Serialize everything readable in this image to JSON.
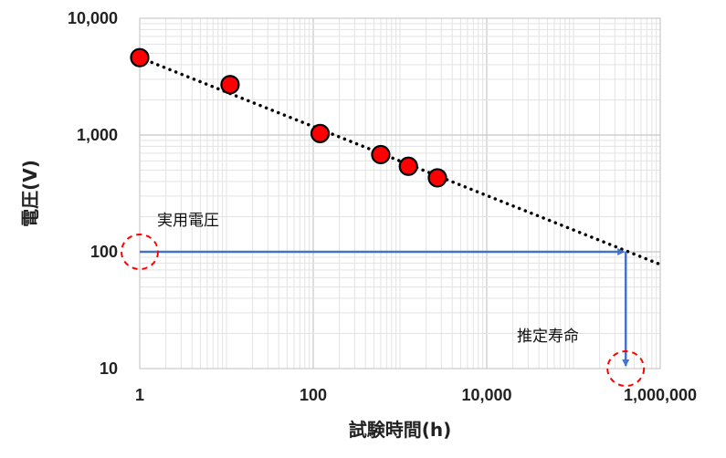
{
  "chart_data": {
    "type": "scatter",
    "xlabel": "試験時間(h)",
    "ylabel": "電圧(V)",
    "x_scale": "log",
    "y_scale": "log",
    "xlim": [
      1,
      1000000
    ],
    "ylim": [
      10,
      10000
    ],
    "grid": true,
    "x_ticks": [
      {
        "value": 1,
        "label": "1"
      },
      {
        "value": 100,
        "label": "100"
      },
      {
        "value": 10000,
        "label": "10,000"
      },
      {
        "value": 1000000,
        "label": "1,000,000"
      }
    ],
    "y_ticks": [
      {
        "value": 10,
        "label": "10"
      },
      {
        "value": 100,
        "label": "100"
      },
      {
        "value": 1000,
        "label": "1,000"
      },
      {
        "value": 10000,
        "label": "10,000"
      }
    ],
    "series": [
      {
        "points": [
          {
            "x": 1,
            "y": 4600
          },
          {
            "x": 11,
            "y": 2700
          },
          {
            "x": 120,
            "y": 1030
          },
          {
            "x": 600,
            "y": 680
          },
          {
            "x": 1250,
            "y": 540
          },
          {
            "x": 2700,
            "y": 430
          }
        ],
        "color": "#ff0000",
        "edge_color": "#000000"
      }
    ],
    "trendline": {
      "x_start": 1,
      "y_start": 4600,
      "x_end": 1000000,
      "y_end": 78,
      "style": "dotted",
      "color": "#000000"
    },
    "annotations": {
      "practical_voltage": {
        "label": "実用電圧",
        "y": 100,
        "x_start": 1,
        "x_end": 400000
      },
      "estimated_life": {
        "label": "推定寿命",
        "x": 400000,
        "y_start": 100,
        "y_end": 10
      },
      "arrow_color": "#4472c4",
      "highlight_color": "#ff0000"
    }
  }
}
